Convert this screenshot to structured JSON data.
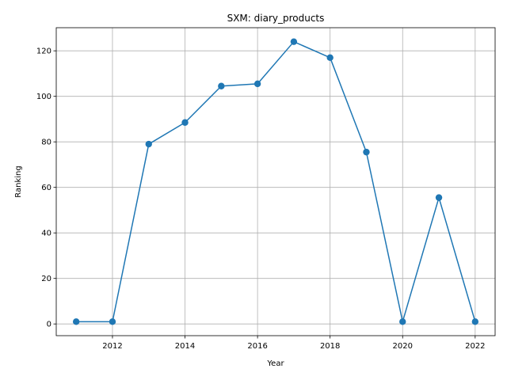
{
  "chart_data": {
    "type": "line",
    "title": "SXM: diary_products",
    "xlabel": "Year",
    "ylabel": "Ranking",
    "x": [
      2011,
      2012,
      2013,
      2014,
      2015,
      2016,
      2017,
      2018,
      2019,
      2020,
      2021,
      2022
    ],
    "series": [
      {
        "values": [
          1,
          1,
          79,
          88.5,
          104.5,
          105.5,
          124,
          117,
          75.5,
          1,
          55.5,
          1
        ],
        "color": "#1f77b4"
      }
    ],
    "xticks": [
      2012,
      2014,
      2016,
      2018,
      2020,
      2022
    ],
    "yticks": [
      0,
      20,
      40,
      60,
      80,
      100,
      120
    ],
    "xlim": [
      2010.45,
      2022.55
    ],
    "ylim": [
      -5.15,
      130.15
    ],
    "grid": true,
    "marker": "circle"
  }
}
